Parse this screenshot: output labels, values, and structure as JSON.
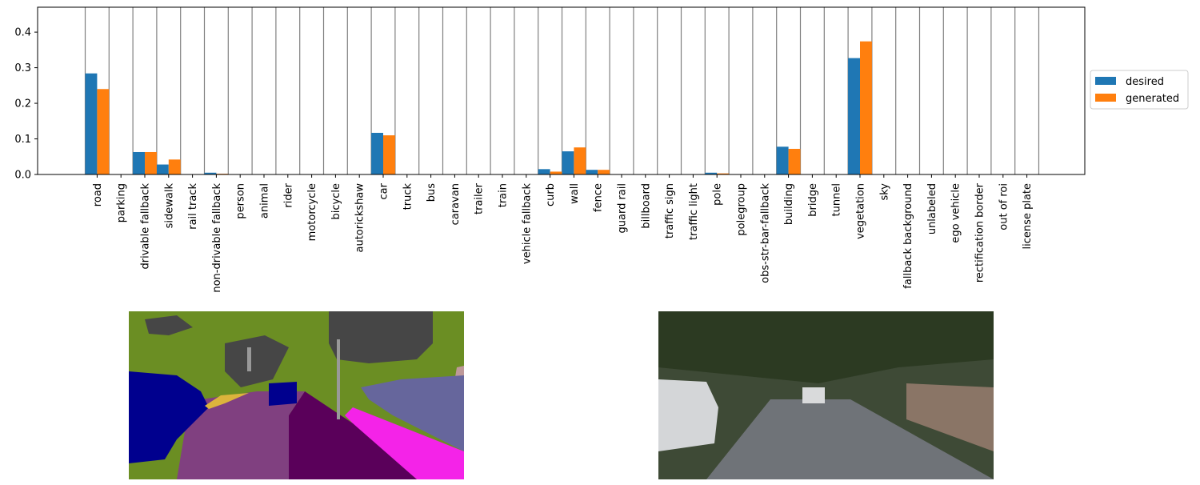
{
  "chart_data": {
    "type": "bar",
    "categories": [
      "road",
      "parking",
      "drivable fallback",
      "sidewalk",
      "rail track",
      "non-drivable fallback",
      "person",
      "animal",
      "rider",
      "motorcycle",
      "bicycle",
      "autorickshaw",
      "car",
      "truck",
      "bus",
      "caravan",
      "trailer",
      "train",
      "vehicle fallback",
      "curb",
      "wall",
      "fence",
      "guard rail",
      "billboard",
      "traffic sign",
      "traffic light",
      "pole",
      "polegroup",
      "obs-str-bar-fallback",
      "building",
      "bridge",
      "tunnel",
      "vegetation",
      "sky",
      "fallback background",
      "unlabeled",
      "ego vehicle",
      "rectification border",
      "out of roi",
      "license plate"
    ],
    "series": [
      {
        "name": "desired",
        "color": "#1f77b4",
        "values": [
          0.284,
          0,
          0.063,
          0.028,
          0,
          0.005,
          0,
          0,
          0,
          0,
          0,
          0,
          0.117,
          0,
          0,
          0,
          0,
          0,
          0,
          0.015,
          0.065,
          0.013,
          0,
          0,
          0,
          0,
          0.005,
          0,
          0,
          0.078,
          0,
          0,
          0.327,
          0,
          0,
          0,
          0,
          0,
          0,
          0
        ]
      },
      {
        "name": "generated",
        "color": "#ff7f0e",
        "values": [
          0.24,
          0,
          0.063,
          0.042,
          0,
          0.002,
          0,
          0,
          0,
          0,
          0,
          0,
          0.11,
          0,
          0,
          0,
          0,
          0,
          0,
          0.008,
          0.076,
          0.013,
          0,
          0,
          0,
          0,
          0.003,
          0,
          0,
          0.072,
          0,
          0,
          0.374,
          0,
          0,
          0,
          0,
          0,
          0,
          0
        ]
      }
    ],
    "yticks": [
      "0.0",
      "0.1",
      "0.2",
      "0.3",
      "0.4"
    ],
    "ylim": [
      0,
      0.47
    ],
    "grid": "vertical lines at category boundaries",
    "legend_position": "right-outside"
  }
}
